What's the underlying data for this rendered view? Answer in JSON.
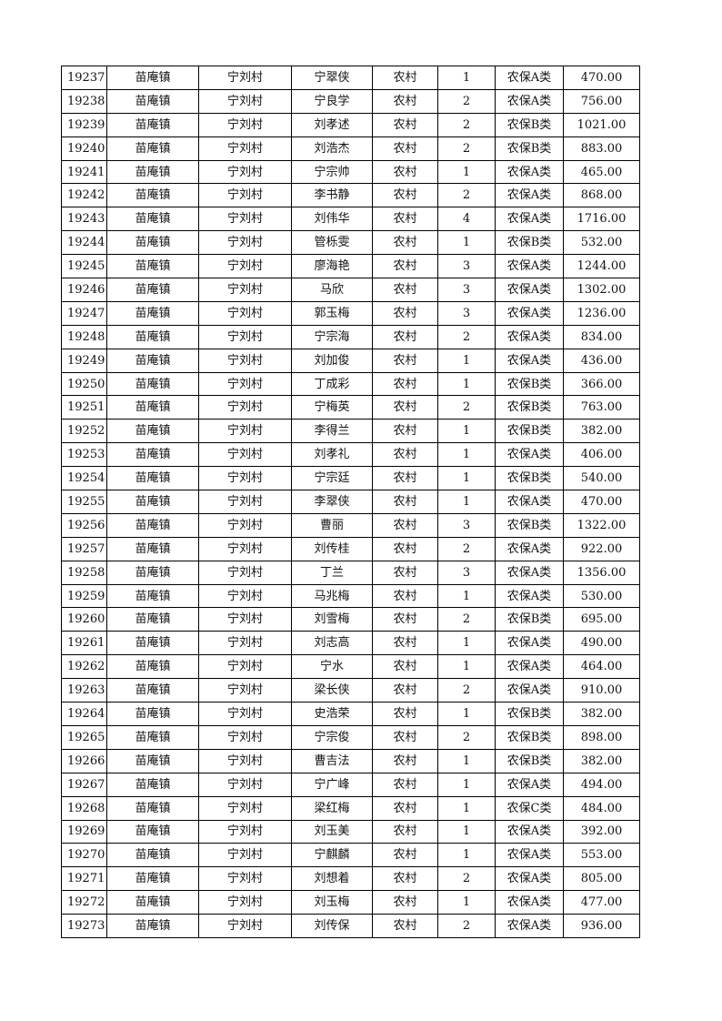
{
  "columns": [
    "id",
    "town",
    "village",
    "name",
    "area",
    "household_size",
    "category",
    "amount"
  ],
  "rows": [
    [
      "19237",
      "苗庵镇",
      "宁刘村",
      "宁翠侠",
      "农村",
      "1",
      "农保A类",
      "470.00"
    ],
    [
      "19238",
      "苗庵镇",
      "宁刘村",
      "宁良学",
      "农村",
      "2",
      "农保A类",
      "756.00"
    ],
    [
      "19239",
      "苗庵镇",
      "宁刘村",
      "刘孝述",
      "农村",
      "2",
      "农保B类",
      "1021.00"
    ],
    [
      "19240",
      "苗庵镇",
      "宁刘村",
      "刘浩杰",
      "农村",
      "2",
      "农保B类",
      "883.00"
    ],
    [
      "19241",
      "苗庵镇",
      "宁刘村",
      "宁宗帅",
      "农村",
      "1",
      "农保A类",
      "465.00"
    ],
    [
      "19242",
      "苗庵镇",
      "宁刘村",
      "李书静",
      "农村",
      "2",
      "农保A类",
      "868.00"
    ],
    [
      "19243",
      "苗庵镇",
      "宁刘村",
      "刘伟华",
      "农村",
      "4",
      "农保A类",
      "1716.00"
    ],
    [
      "19244",
      "苗庵镇",
      "宁刘村",
      "管栎雯",
      "农村",
      "1",
      "农保B类",
      "532.00"
    ],
    [
      "19245",
      "苗庵镇",
      "宁刘村",
      "廖海艳",
      "农村",
      "3",
      "农保A类",
      "1244.00"
    ],
    [
      "19246",
      "苗庵镇",
      "宁刘村",
      "马欣",
      "农村",
      "3",
      "农保A类",
      "1302.00"
    ],
    [
      "19247",
      "苗庵镇",
      "宁刘村",
      "郭玉梅",
      "农村",
      "3",
      "农保A类",
      "1236.00"
    ],
    [
      "19248",
      "苗庵镇",
      "宁刘村",
      "宁宗海",
      "农村",
      "2",
      "农保A类",
      "834.00"
    ],
    [
      "19249",
      "苗庵镇",
      "宁刘村",
      "刘加俊",
      "农村",
      "1",
      "农保A类",
      "436.00"
    ],
    [
      "19250",
      "苗庵镇",
      "宁刘村",
      "丁成彩",
      "农村",
      "1",
      "农保B类",
      "366.00"
    ],
    [
      "19251",
      "苗庵镇",
      "宁刘村",
      "宁梅英",
      "农村",
      "2",
      "农保B类",
      "763.00"
    ],
    [
      "19252",
      "苗庵镇",
      "宁刘村",
      "李得兰",
      "农村",
      "1",
      "农保B类",
      "382.00"
    ],
    [
      "19253",
      "苗庵镇",
      "宁刘村",
      "刘孝礼",
      "农村",
      "1",
      "农保A类",
      "406.00"
    ],
    [
      "19254",
      "苗庵镇",
      "宁刘村",
      "宁宗廷",
      "农村",
      "1",
      "农保B类",
      "540.00"
    ],
    [
      "19255",
      "苗庵镇",
      "宁刘村",
      "李翠侠",
      "农村",
      "1",
      "农保A类",
      "470.00"
    ],
    [
      "19256",
      "苗庵镇",
      "宁刘村",
      "曹丽",
      "农村",
      "3",
      "农保B类",
      "1322.00"
    ],
    [
      "19257",
      "苗庵镇",
      "宁刘村",
      "刘传桂",
      "农村",
      "2",
      "农保A类",
      "922.00"
    ],
    [
      "19258",
      "苗庵镇",
      "宁刘村",
      "丁兰",
      "农村",
      "3",
      "农保A类",
      "1356.00"
    ],
    [
      "19259",
      "苗庵镇",
      "宁刘村",
      "马兆梅",
      "农村",
      "1",
      "农保A类",
      "530.00"
    ],
    [
      "19260",
      "苗庵镇",
      "宁刘村",
      "刘雪梅",
      "农村",
      "2",
      "农保B类",
      "695.00"
    ],
    [
      "19261",
      "苗庵镇",
      "宁刘村",
      "刘志高",
      "农村",
      "1",
      "农保A类",
      "490.00"
    ],
    [
      "19262",
      "苗庵镇",
      "宁刘村",
      "宁水",
      "农村",
      "1",
      "农保A类",
      "464.00"
    ],
    [
      "19263",
      "苗庵镇",
      "宁刘村",
      "梁长侠",
      "农村",
      "2",
      "农保A类",
      "910.00"
    ],
    [
      "19264",
      "苗庵镇",
      "宁刘村",
      "史浩荣",
      "农村",
      "1",
      "农保B类",
      "382.00"
    ],
    [
      "19265",
      "苗庵镇",
      "宁刘村",
      "宁宗俊",
      "农村",
      "2",
      "农保B类",
      "898.00"
    ],
    [
      "19266",
      "苗庵镇",
      "宁刘村",
      "曹吉法",
      "农村",
      "1",
      "农保B类",
      "382.00"
    ],
    [
      "19267",
      "苗庵镇",
      "宁刘村",
      "宁广峰",
      "农村",
      "1",
      "农保A类",
      "494.00"
    ],
    [
      "19268",
      "苗庵镇",
      "宁刘村",
      "梁红梅",
      "农村",
      "1",
      "农保C类",
      "484.00"
    ],
    [
      "19269",
      "苗庵镇",
      "宁刘村",
      "刘玉美",
      "农村",
      "1",
      "农保A类",
      "392.00"
    ],
    [
      "19270",
      "苗庵镇",
      "宁刘村",
      "宁麒麟",
      "农村",
      "1",
      "农保A类",
      "553.00"
    ],
    [
      "19271",
      "苗庵镇",
      "宁刘村",
      "刘想着",
      "农村",
      "2",
      "农保A类",
      "805.00"
    ],
    [
      "19272",
      "苗庵镇",
      "宁刘村",
      "刘玉梅",
      "农村",
      "1",
      "农保A类",
      "477.00"
    ],
    [
      "19273",
      "苗庵镇",
      "宁刘村",
      "刘传保",
      "农村",
      "2",
      "农保A类",
      "936.00"
    ]
  ]
}
